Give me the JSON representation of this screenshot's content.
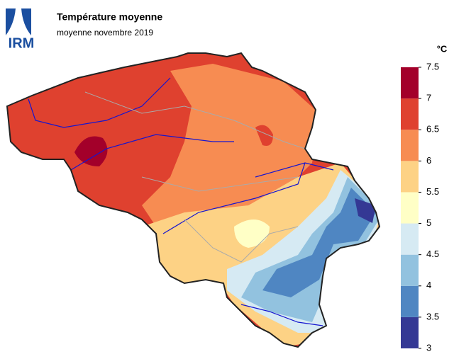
{
  "logo": "IRM",
  "title": "Température moyenne",
  "subtitle": "moyenne novembre 2019",
  "legend": {
    "unit": "°C",
    "ticks": [
      3,
      3.5,
      4,
      4.5,
      5,
      5.5,
      6,
      6.5,
      7,
      7.5
    ],
    "colors": [
      "#343894",
      "#4f86c2",
      "#92c2df",
      "#d6eaf3",
      "#ffffc6",
      "#fdd285",
      "#f78c52",
      "#df412f",
      "#a3002a"
    ]
  }
}
